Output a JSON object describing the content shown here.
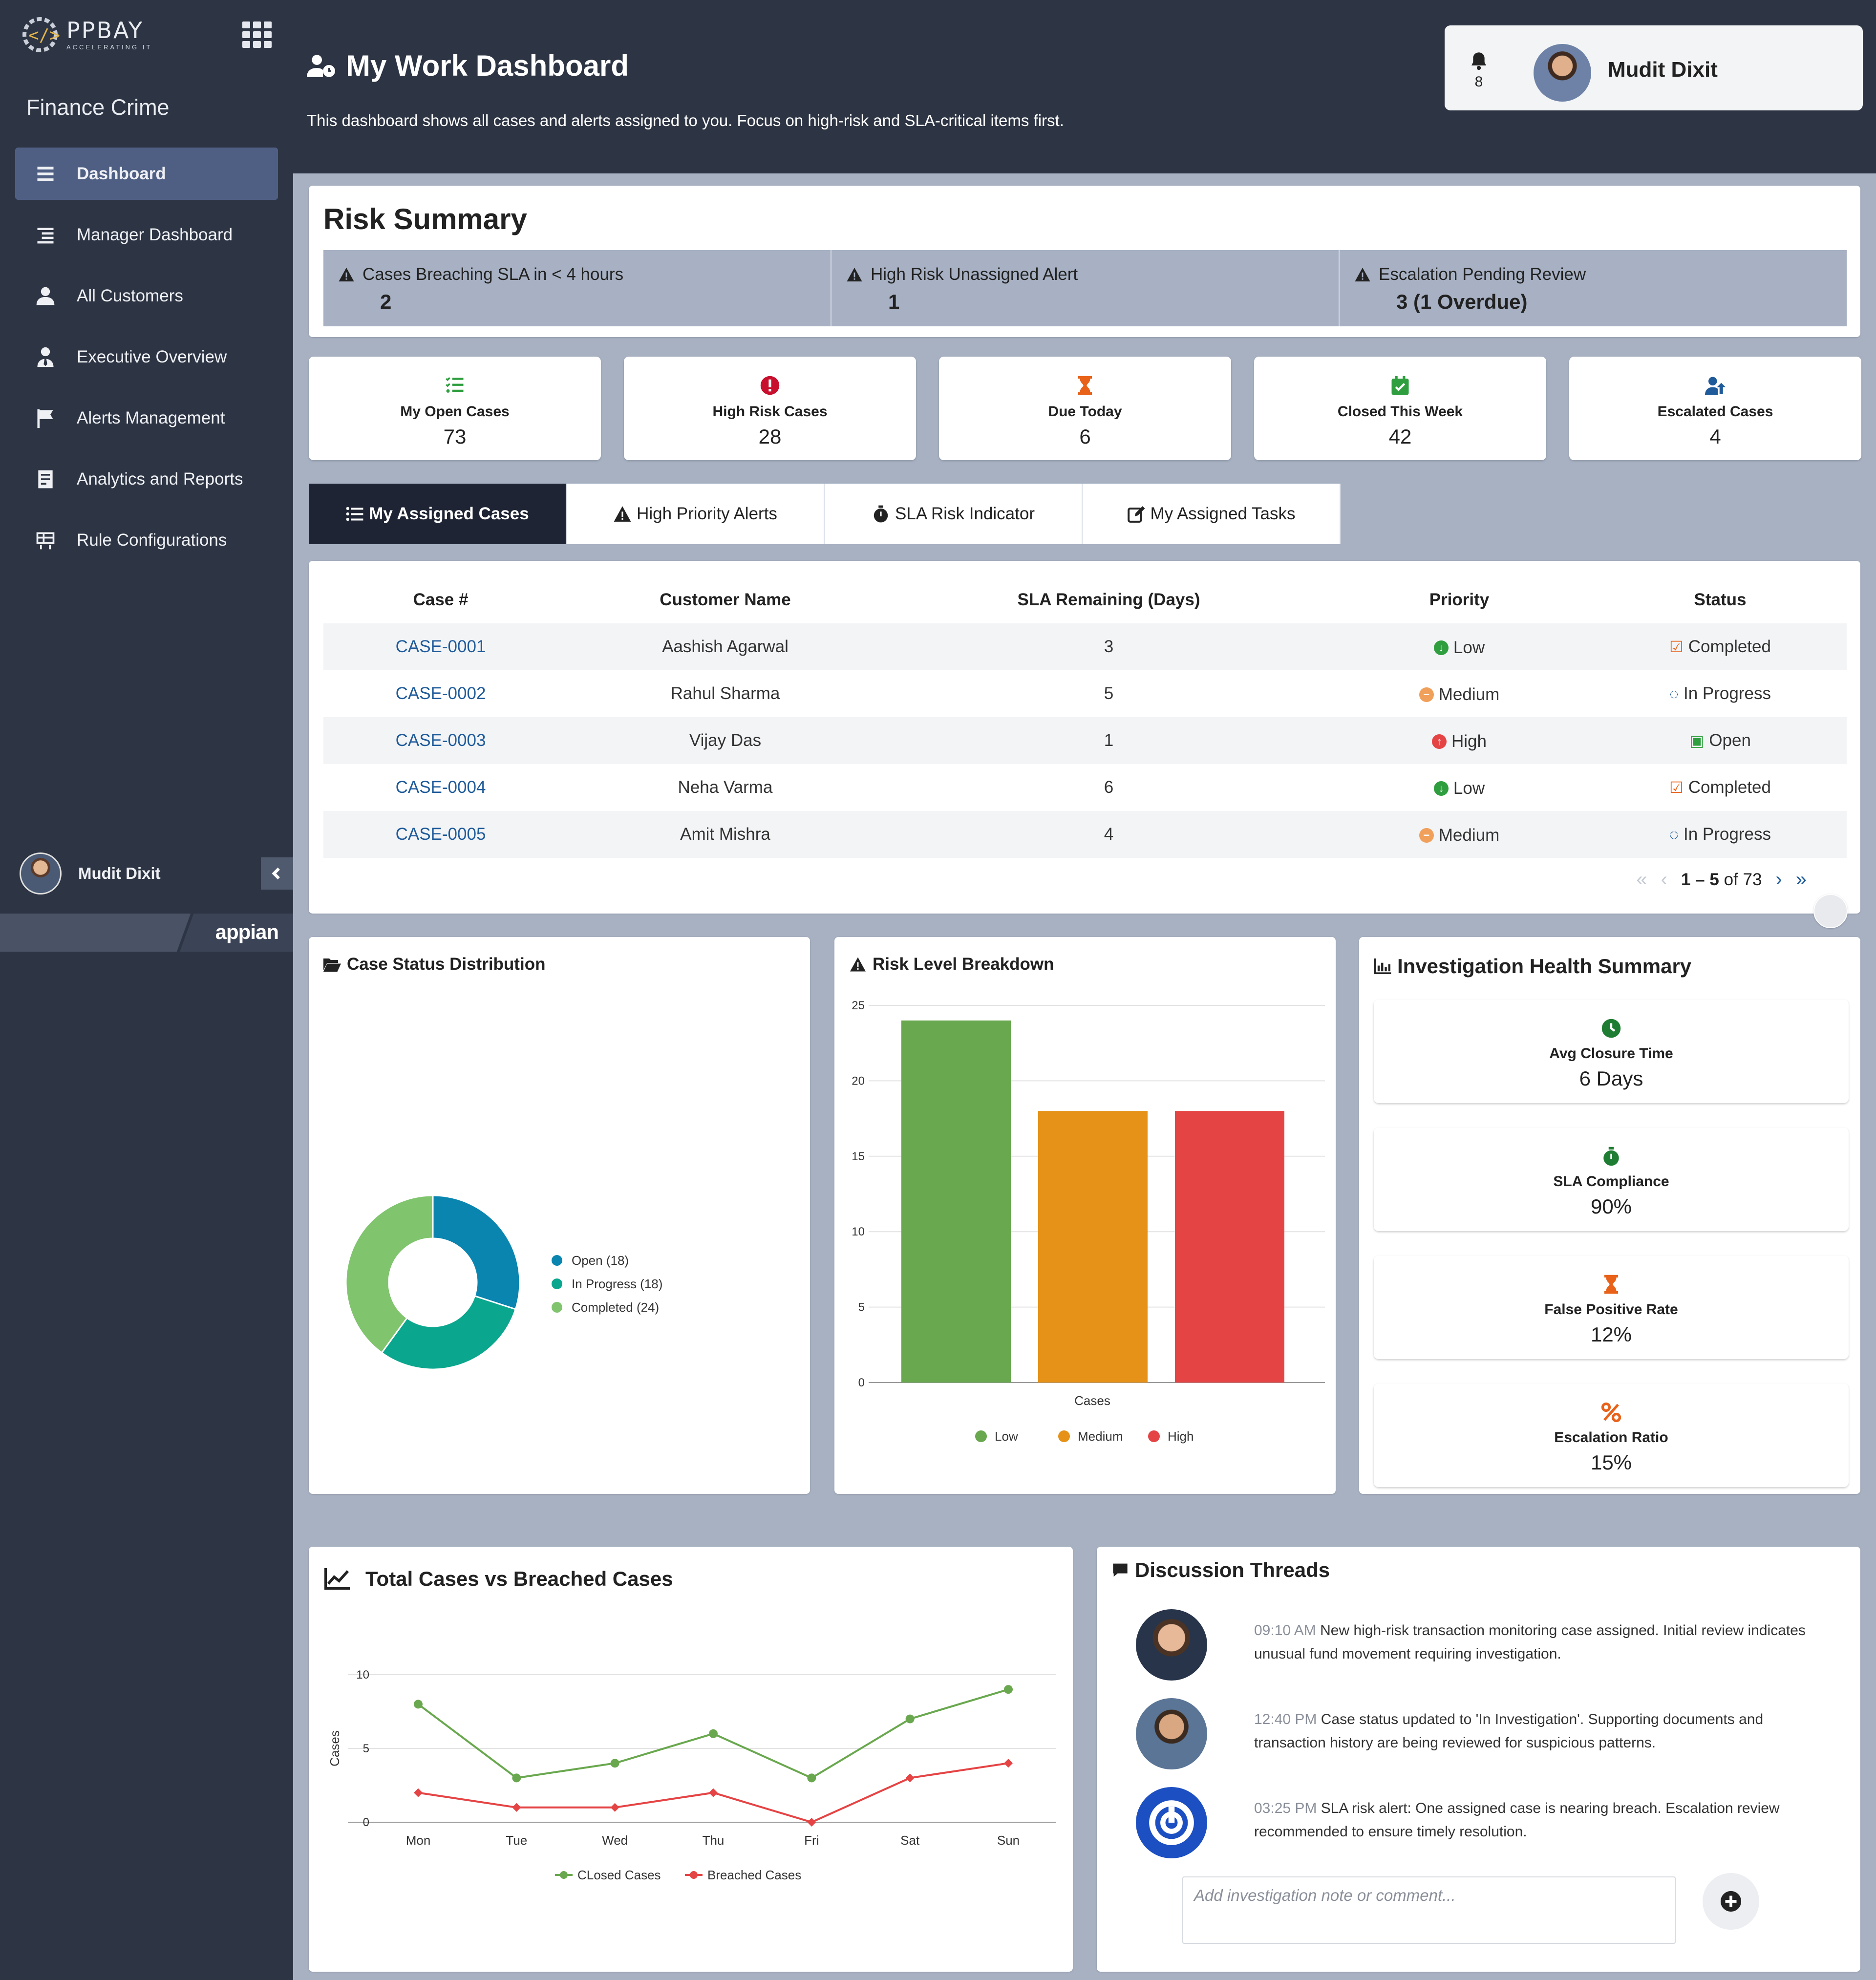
{
  "sidebar": {
    "brand": {
      "name": "PPBAY",
      "tagline": "ACCELERATING IT"
    },
    "app_name": "Finance Crime",
    "nav": [
      {
        "label": "Dashboard",
        "icon": "list-icon"
      },
      {
        "label": "Manager Dashboard",
        "icon": "list-indent-icon"
      },
      {
        "label": "All Customers",
        "icon": "user-icon"
      },
      {
        "label": "Executive Overview",
        "icon": "user-tie-icon"
      },
      {
        "label": "Alerts Management",
        "icon": "flag-icon"
      },
      {
        "label": "Analytics and Reports",
        "icon": "report-icon"
      },
      {
        "label": "Rule Configurations",
        "icon": "rules-grid-icon"
      }
    ],
    "user_name": "Mudit Dixit",
    "footer_brand": "appian"
  },
  "header": {
    "title": "My Work Dashboard",
    "subtitle": "This dashboard shows all cases and alerts assigned to you. Focus on high-risk and SLA-critical items first.",
    "notification_count": "8",
    "user_name": "Mudit Dixit"
  },
  "risk_summary": {
    "title": "Risk Summary",
    "items": [
      {
        "label": "Cases Breaching SLA in < 4 hours",
        "value": "2"
      },
      {
        "label": "High Risk Unassigned Alert",
        "value": "1"
      },
      {
        "label": "Escalation Pending Review",
        "value": "3 (1 Overdue)"
      }
    ]
  },
  "kpis": [
    {
      "label": "My Open Cases",
      "value": "73",
      "icon": "list-check-icon",
      "color": "#2e9e3e"
    },
    {
      "label": "High Risk Cases",
      "value": "28",
      "icon": "exclamation-circle-icon",
      "color": "#c8102e"
    },
    {
      "label": "Due Today",
      "value": "6",
      "icon": "hourglass-icon",
      "color": "#e8621a"
    },
    {
      "label": "Closed This Week",
      "value": "42",
      "icon": "calendar-check-icon",
      "color": "#2e9e3e"
    },
    {
      "label": "Escalated Cases",
      "value": "4",
      "icon": "user-escalate-icon",
      "color": "#1f5b9a"
    }
  ],
  "tabs": [
    {
      "label": "My Assigned Cases",
      "icon": "list-icon"
    },
    {
      "label": "High Priority Alerts",
      "icon": "warning-icon"
    },
    {
      "label": "SLA Risk Indicator",
      "icon": "stopwatch-icon"
    },
    {
      "label": "My Assigned Tasks",
      "icon": "edit-icon"
    }
  ],
  "table": {
    "columns": [
      "Case #",
      "Customer Name",
      "SLA Remaining (Days)",
      "Priority",
      "Status"
    ],
    "rows": [
      {
        "case": "CASE-0001",
        "customer": "Aashish Agarwal",
        "sla": "3",
        "priority": "Low",
        "status": "Completed"
      },
      {
        "case": "CASE-0002",
        "customer": "Rahul Sharma",
        "sla": "5",
        "priority": "Medium",
        "status": "In Progress"
      },
      {
        "case": "CASE-0003",
        "customer": "Vijay Das",
        "sla": "1",
        "priority": "High",
        "status": "Open"
      },
      {
        "case": "CASE-0004",
        "customer": "Neha Varma",
        "sla": "6",
        "priority": "Low",
        "status": "Completed"
      },
      {
        "case": "CASE-0005",
        "customer": "Amit Mishra",
        "sla": "4",
        "priority": "Medium",
        "status": "In Progress"
      }
    ],
    "pager": {
      "range": "1 – 5",
      "of": "of 73"
    }
  },
  "case_status": {
    "title": "Case Status Distribution"
  },
  "risk_level": {
    "title": "Risk Level Breakdown"
  },
  "health": {
    "title": "Investigation Health Summary",
    "cards": [
      {
        "label": "Avg Closure Time",
        "value": "6 Days",
        "icon": "clock-icon",
        "color": "#1e7d32"
      },
      {
        "label": "SLA Compliance",
        "value": "90%",
        "icon": "stopwatch-icon",
        "color": "#1e7d32"
      },
      {
        "label": "False Positive Rate",
        "value": "12%",
        "icon": "hourglass-icon",
        "color": "#e8621a"
      },
      {
        "label": "Escalation Ratio",
        "value": "15%",
        "icon": "percent-icon",
        "color": "#e8621a"
      }
    ]
  },
  "trend": {
    "title": "Total Cases vs Breached Cases"
  },
  "threads": {
    "title": "Discussion Threads",
    "items": [
      {
        "time": "09:10 AM",
        "text": "New high-risk transaction monitoring case assigned. Initial review indicates unusual fund movement requiring investigation."
      },
      {
        "time": "12:40 PM",
        "text": "Case status updated to 'In Investigation'. Supporting documents and transaction history are being reviewed for suspicious patterns."
      },
      {
        "time": "03:25 PM",
        "text": "SLA risk alert: One assigned case is nearing breach. Escalation review recommended to ensure timely resolution."
      }
    ],
    "comment_placeholder": "Add investigation note or comment..."
  },
  "chart_data": [
    {
      "type": "pie",
      "categories": [
        "Open (18)",
        "In Progress (18)",
        "Completed (24)"
      ],
      "values": [
        18,
        18,
        24
      ],
      "colors": [
        "#0a85b0",
        "#0ba68e",
        "#80c46e"
      ],
      "legend": "right"
    },
    {
      "type": "bar",
      "xlabel": "Cases",
      "categories": [
        "Low",
        "Medium",
        "High"
      ],
      "values": [
        24,
        18,
        18
      ],
      "colors": [
        "#6aa84f",
        "#e69219",
        "#e54445"
      ],
      "ylim": [
        0,
        25
      ],
      "yticks": [
        0,
        5,
        10,
        15,
        20,
        25
      ],
      "grid": true,
      "legend": "bottom"
    },
    {
      "type": "line",
      "ylabel": "Cases",
      "x": [
        "Mon",
        "Tue",
        "Wed",
        "Thu",
        "Fri",
        "Sat",
        "Sun"
      ],
      "ylim": [
        0,
        10
      ],
      "yticks": [
        0,
        5,
        10
      ],
      "series": [
        {
          "name": "CLosed Cases",
          "values": [
            8,
            3,
            4,
            6,
            3,
            7,
            9
          ],
          "color": "#6aa84f"
        },
        {
          "name": "Breached Cases",
          "values": [
            2,
            1,
            1,
            2,
            0,
            3,
            4
          ],
          "color": "#e54445"
        }
      ],
      "grid": true,
      "legend": "bottom"
    }
  ]
}
